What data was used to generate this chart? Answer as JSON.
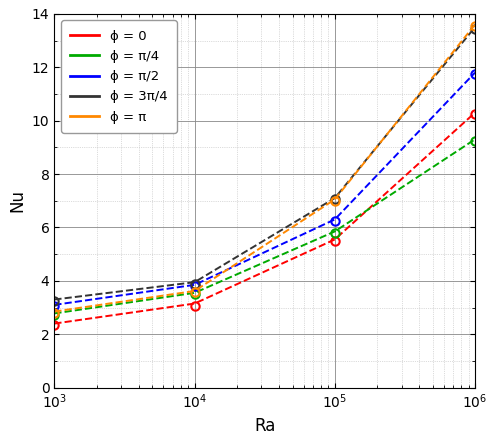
{
  "title": "",
  "xlabel": "Ra",
  "ylabel": "Nu",
  "xlim": [
    1000,
    1000000
  ],
  "ylim": [
    0,
    14
  ],
  "yticks": [
    0,
    2,
    4,
    6,
    8,
    10,
    12,
    14
  ],
  "series": [
    {
      "label": "ϕ = 0",
      "color": "red",
      "Ra_ref_points": [
        1000,
        10000,
        100000,
        1000000
      ],
      "Nu_ref_points": [
        2.4,
        3.15,
        5.55,
        10.3
      ],
      "Ra_calc_points": [
        1000,
        10000,
        100000,
        1000000
      ],
      "Nu_calc_points": [
        2.35,
        3.05,
        5.5,
        10.25
      ]
    },
    {
      "label": "ϕ = π/4",
      "color": "#00aa00",
      "Ra_ref_points": [
        1000,
        10000,
        100000,
        1000000
      ],
      "Nu_ref_points": [
        2.78,
        3.55,
        5.85,
        9.3
      ],
      "Ra_calc_points": [
        1000,
        10000,
        100000,
        1000000
      ],
      "Nu_calc_points": [
        2.73,
        3.5,
        5.8,
        9.25
      ]
    },
    {
      "label": "ϕ = π/2",
      "color": "blue",
      "Ra_ref_points": [
        1000,
        10000,
        100000,
        1000000
      ],
      "Nu_ref_points": [
        3.1,
        3.85,
        6.3,
        11.8
      ],
      "Ra_calc_points": [
        1000,
        10000,
        100000,
        1000000
      ],
      "Nu_calc_points": [
        3.05,
        3.8,
        6.25,
        11.75
      ]
    },
    {
      "label": "ϕ = 3π/4",
      "color": "#333333",
      "Ra_ref_points": [
        1000,
        10000,
        100000,
        1000000
      ],
      "Nu_ref_points": [
        3.3,
        3.95,
        7.1,
        13.5
      ],
      "Ra_calc_points": [
        1000,
        10000,
        100000,
        1000000
      ],
      "Nu_calc_points": [
        3.25,
        3.9,
        7.05,
        13.45
      ]
    },
    {
      "label": "ϕ = π",
      "color": "#ff8800",
      "Ra_ref_points": [
        1000,
        10000,
        100000,
        1000000
      ],
      "Nu_ref_points": [
        2.85,
        3.62,
        7.05,
        13.6
      ],
      "Ra_calc_points": [
        1000,
        10000,
        100000,
        1000000
      ],
      "Nu_calc_points": [
        2.8,
        3.57,
        7.0,
        13.55
      ]
    }
  ],
  "background_color": "#ffffff",
  "major_grid_color": "#888888",
  "minor_grid_color": "#bbbbbb",
  "legend_fontsize": 9.5,
  "axis_label_fontsize": 12,
  "tick_fontsize": 10
}
